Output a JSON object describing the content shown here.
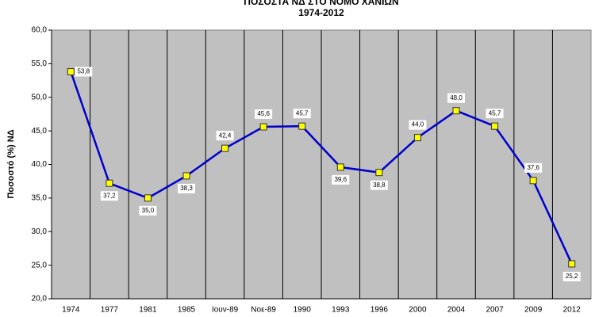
{
  "chart_data": {
    "type": "line",
    "title": "ΠΟΣΟΣΤΑ ΝΔ ΣΤΟ ΝΟΜΟ ΧΑΝΙΩΝ",
    "subtitle": "1974-2012",
    "y_label": "Ποσοστό (%) ΝΔ",
    "categories": [
      "1974",
      "1977",
      "1981",
      "1985",
      "Ιουν-89",
      "Νοε-89",
      "1990",
      "1993",
      "1996",
      "2000",
      "2004",
      "2007",
      "2009",
      "2012"
    ],
    "series": [
      {
        "name": "ΝΔ",
        "color": "#0000cc",
        "values": [
          53.8,
          37.2,
          35.0,
          38.3,
          42.4,
          45.6,
          45.7,
          39.6,
          38.8,
          44.0,
          48.0,
          45.7,
          37.6,
          25.2
        ],
        "value_labels": [
          "53,8",
          "37,2",
          "35,0",
          "38,3",
          "42,4",
          "45,6",
          "45,7",
          "39,6",
          "38,8",
          "44,0",
          "48,0",
          "45,7",
          "37,6",
          "25,2"
        ]
      }
    ],
    "ylim": [
      20,
      60
    ],
    "yticks": [
      {
        "value": 20,
        "label": "20,0"
      },
      {
        "value": 25,
        "label": "25,0"
      },
      {
        "value": 30,
        "label": "30,0"
      },
      {
        "value": 35,
        "label": "35,0"
      },
      {
        "value": 40,
        "label": "40,0"
      },
      {
        "value": 45,
        "label": "45,0"
      },
      {
        "value": 50,
        "label": "50,0"
      },
      {
        "value": 55,
        "label": "55,0"
      },
      {
        "value": 60,
        "label": "60,0"
      }
    ],
    "marker_color": "#ffff00",
    "plot_background": "#c0c0c0"
  }
}
